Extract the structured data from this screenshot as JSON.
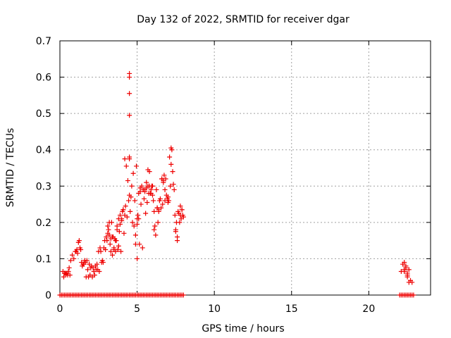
{
  "chart_data": {
    "type": "scatter",
    "title": "Day 132 of 2022, SRMTID for receiver dgar",
    "xlabel": "GPS time / hours",
    "ylabel": "SRMTID / TECUs",
    "xlim": [
      0,
      24
    ],
    "ylim": [
      0,
      0.7
    ],
    "xticks": [
      0,
      5,
      10,
      15,
      20
    ],
    "xtick_labels": [
      "0",
      "5",
      "10",
      "15",
      "20"
    ],
    "yticks": [
      0,
      0.1,
      0.2,
      0.3,
      0.4,
      0.5,
      0.6,
      0.7
    ],
    "ytick_labels": [
      "0",
      "0.1",
      "0.2",
      "0.3",
      "0.4",
      "0.5",
      "0.6",
      "0.7"
    ],
    "grid": true,
    "marker": "+",
    "color": "#ee0000",
    "series": [
      {
        "name": "SRMTID",
        "x": [
          0.2,
          0.3,
          0.4,
          0.5,
          0.6,
          0.7,
          0.8,
          1.0,
          1.1,
          1.2,
          1.3,
          1.4,
          1.5,
          1.6,
          1.7,
          1.8,
          1.9,
          2.0,
          2.1,
          2.2,
          2.3,
          2.4,
          2.5,
          2.6,
          2.7,
          2.8,
          2.9,
          3.0,
          3.1,
          3.2,
          3.3,
          3.4,
          3.5,
          3.6,
          3.7,
          3.8,
          3.9,
          4.0,
          4.1,
          4.2,
          4.3,
          4.4,
          4.5,
          4.6,
          4.7,
          4.8,
          4.9,
          5.0,
          5.1,
          5.2,
          5.3,
          5.4,
          5.5,
          5.6,
          5.7,
          5.8,
          5.9,
          6.0,
          6.1,
          6.2,
          6.3,
          6.4,
          6.5,
          6.6,
          6.7,
          6.8,
          6.9,
          7.0,
          7.1,
          7.2,
          7.3,
          7.4,
          7.5,
          7.6,
          7.7,
          7.8,
          7.9,
          8.0,
          0.25,
          0.45,
          0.65,
          0.9,
          1.05,
          1.25,
          1.45,
          1.65,
          1.85,
          2.05,
          2.25,
          2.45,
          2.65,
          2.85,
          3.05,
          3.25,
          3.45,
          3.65,
          3.85,
          4.05,
          4.25,
          4.45,
          4.55,
          4.65,
          4.85,
          5.05,
          5.25,
          5.45,
          5.65,
          5.85,
          6.05,
          6.25,
          6.45,
          6.65,
          6.85,
          7.05,
          7.25,
          7.45,
          7.65,
          7.85,
          0.35,
          0.55,
          1.15,
          1.35,
          1.55,
          1.75,
          1.95,
          2.15,
          2.35,
          2.55,
          2.75,
          2.95,
          3.15,
          3.35,
          3.55,
          3.75,
          3.95,
          4.15,
          4.35,
          4.75,
          4.95,
          5.15,
          5.35,
          5.55,
          5.75,
          5.95,
          6.15,
          6.35,
          6.55,
          6.75,
          6.95,
          7.15,
          7.35,
          7.55,
          7.75,
          7.95,
          3.1,
          3.2,
          3.3,
          3.4,
          3.5,
          3.6,
          3.7,
          3.8,
          3.9,
          4.0,
          4.1,
          4.2,
          4.9,
          5.0,
          5.0,
          5.1,
          5.2,
          5.4,
          5.5,
          5.6,
          5.7,
          5.8,
          5.9,
          6.0,
          6.1,
          6.3,
          6.4,
          6.6,
          6.7,
          6.8,
          7.0,
          7.2,
          7.5,
          7.6,
          7.8,
          7.9,
          4.5,
          4.5,
          4.5,
          4.5,
          4.5,
          4.5,
          22.1,
          22.2,
          22.3,
          22.4,
          22.5,
          22.6,
          22.7,
          22.8,
          22.3,
          22.5,
          22.4,
          22.6,
          22.3,
          22.5
        ],
        "y": [
          0.065,
          0.06,
          0.058,
          0.055,
          0.075,
          0.095,
          0.11,
          0.12,
          0.125,
          0.145,
          0.13,
          0.09,
          0.085,
          0.095,
          0.05,
          0.07,
          0.085,
          0.075,
          0.05,
          0.065,
          0.08,
          0.085,
          0.12,
          0.13,
          0.09,
          0.09,
          0.15,
          0.16,
          0.19,
          0.165,
          0.155,
          0.16,
          0.13,
          0.12,
          0.18,
          0.21,
          0.22,
          0.21,
          0.235,
          0.375,
          0.355,
          0.315,
          0.275,
          0.27,
          0.2,
          0.19,
          0.165,
          0.21,
          0.28,
          0.295,
          0.3,
          0.29,
          0.285,
          0.31,
          0.345,
          0.3,
          0.28,
          0.275,
          0.18,
          0.165,
          0.24,
          0.23,
          0.265,
          0.32,
          0.31,
          0.29,
          0.275,
          0.255,
          0.38,
          0.36,
          0.34,
          0.29,
          0.175,
          0.16,
          0.225,
          0.245,
          0.235,
          0.215,
          0.05,
          0.06,
          0.055,
          0.1,
          0.12,
          0.15,
          0.08,
          0.09,
          0.05,
          0.08,
          0.055,
          0.07,
          0.12,
          0.13,
          0.15,
          0.14,
          0.16,
          0.15,
          0.175,
          0.23,
          0.245,
          0.26,
          0.23,
          0.3,
          0.26,
          0.22,
          0.25,
          0.265,
          0.255,
          0.28,
          0.26,
          0.29,
          0.26,
          0.25,
          0.32,
          0.26,
          0.4,
          0.22,
          0.23,
          0.21,
          0.06,
          0.065,
          0.115,
          0.125,
          0.085,
          0.095,
          0.055,
          0.075,
          0.07,
          0.065,
          0.095,
          0.125,
          0.18,
          0.2,
          0.155,
          0.125,
          0.12,
          0.17,
          0.215,
          0.335,
          0.355,
          0.14,
          0.13,
          0.225,
          0.28,
          0.3,
          0.19,
          0.2,
          0.24,
          0.33,
          0.265,
          0.3,
          0.305,
          0.2,
          0.2,
          0.22,
          0.17,
          0.2,
          0.12,
          0.11,
          0.125,
          0.15,
          0.19,
          0.135,
          0.195,
          0.205,
          0.235,
          0.22,
          0.14,
          0.1,
          0.195,
          0.21,
          0.285,
          0.29,
          0.29,
          0.295,
          0.3,
          0.34,
          0.29,
          0.3,
          0.23,
          0.24,
          0.235,
          0.32,
          0.315,
          0.26,
          0.27,
          0.405,
          0.18,
          0.15,
          0.22,
          0.235,
          0.61,
          0.6,
          0.555,
          0.495,
          0.375,
          0.38,
          0.065,
          0.085,
          0.065,
          0.075,
          0.055,
          0.035,
          0.04,
          0.035,
          0.09,
          0.05,
          0.08,
          0.07,
          0.07,
          0.06
        ],
        "zeros_x": [
          0.0,
          0.1,
          0.2,
          0.3,
          0.4,
          0.5,
          0.6,
          0.7,
          0.8,
          0.9,
          1.0,
          1.1,
          1.2,
          1.3,
          1.4,
          1.5,
          1.6,
          1.7,
          1.8,
          1.9,
          2.0,
          2.1,
          2.2,
          2.3,
          2.4,
          2.5,
          2.6,
          2.7,
          2.8,
          2.9,
          3.0,
          3.1,
          3.2,
          3.3,
          3.4,
          3.5,
          3.6,
          3.7,
          3.8,
          3.9,
          4.0,
          4.1,
          4.2,
          4.3,
          4.4,
          4.5,
          4.6,
          4.7,
          4.8,
          4.9,
          5.0,
          5.1,
          5.2,
          5.3,
          5.4,
          5.5,
          5.6,
          5.7,
          5.8,
          5.9,
          6.0,
          6.1,
          6.2,
          6.3,
          6.4,
          6.5,
          6.6,
          6.7,
          6.8,
          6.9,
          7.0,
          7.1,
          7.2,
          7.3,
          7.4,
          7.5,
          7.6,
          7.7,
          7.8,
          7.9,
          8.0,
          22.0,
          22.1,
          22.2,
          22.3,
          22.4,
          22.5,
          22.6,
          22.7,
          22.8,
          22.9
        ]
      }
    ]
  }
}
